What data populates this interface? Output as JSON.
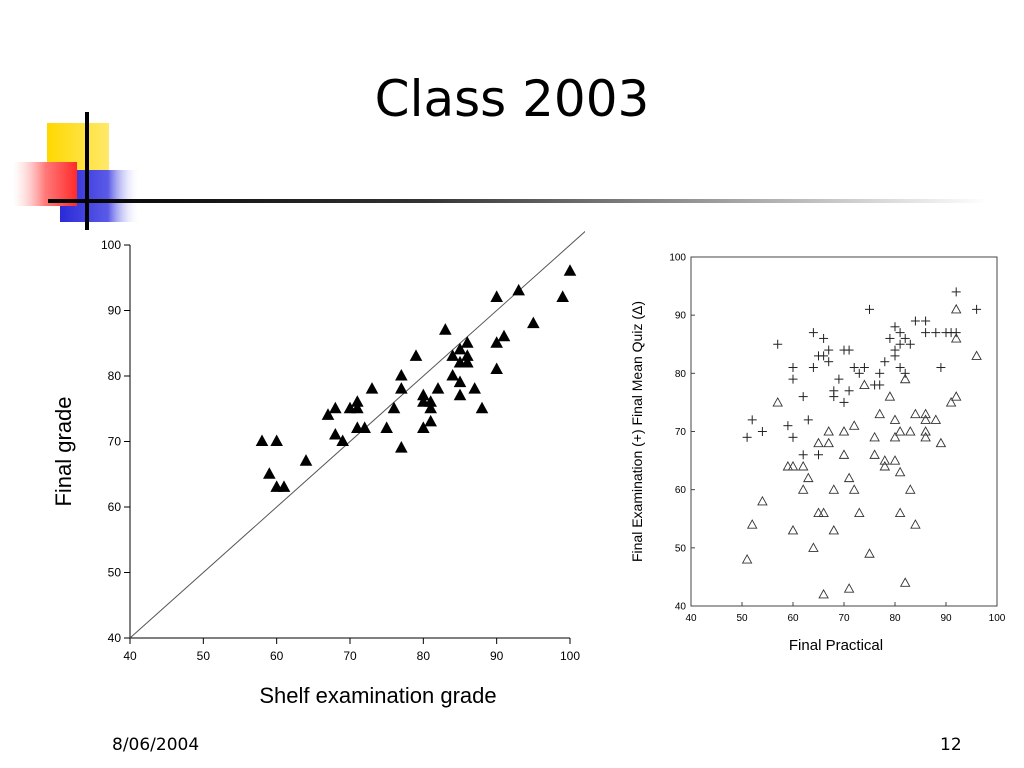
{
  "slide": {
    "title": "Class 2003",
    "footer_date": "8/06/2004",
    "page_number": "12"
  },
  "colors": {
    "deco_yellow": "#ffd800",
    "deco_red": "#ff3b3b",
    "deco_blue": "#2a2ad8",
    "rule": "#000000"
  },
  "chart_data": [
    {
      "type": "scatter",
      "title": "",
      "xlabel": "Shelf examination grade",
      "ylabel": "Final grade",
      "xlim": [
        40,
        100
      ],
      "ylim": [
        40,
        100
      ],
      "xticks": [
        40,
        50,
        60,
        70,
        80,
        90,
        100
      ],
      "yticks": [
        40,
        50,
        60,
        70,
        80,
        90,
        100
      ],
      "marker": "filled-triangle",
      "reference_line": {
        "from": [
          40,
          40
        ],
        "to": [
          103,
          103
        ]
      },
      "points": [
        [
          58,
          70
        ],
        [
          59,
          65
        ],
        [
          60,
          70
        ],
        [
          60,
          63
        ],
        [
          61,
          63
        ],
        [
          64,
          67
        ],
        [
          67,
          74
        ],
        [
          68,
          75
        ],
        [
          68,
          71
        ],
        [
          69,
          70
        ],
        [
          70,
          75
        ],
        [
          71,
          76
        ],
        [
          71,
          72
        ],
        [
          71,
          75
        ],
        [
          72,
          72
        ],
        [
          73,
          78
        ],
        [
          75,
          72
        ],
        [
          76,
          75
        ],
        [
          77,
          80
        ],
        [
          77,
          78
        ],
        [
          77,
          69
        ],
        [
          79,
          83
        ],
        [
          80,
          77
        ],
        [
          80,
          76
        ],
        [
          80,
          72
        ],
        [
          81,
          76
        ],
        [
          81,
          75
        ],
        [
          81,
          73
        ],
        [
          82,
          78
        ],
        [
          83,
          87
        ],
        [
          84,
          83
        ],
        [
          84,
          80
        ],
        [
          85,
          84
        ],
        [
          85,
          82
        ],
        [
          85,
          79
        ],
        [
          85,
          77
        ],
        [
          86,
          85
        ],
        [
          86,
          83
        ],
        [
          86,
          82
        ],
        [
          87,
          78
        ],
        [
          88,
          75
        ],
        [
          90,
          92
        ],
        [
          90,
          85
        ],
        [
          90,
          81
        ],
        [
          91,
          86
        ],
        [
          93,
          93
        ],
        [
          95,
          88
        ],
        [
          99,
          92
        ],
        [
          100,
          96
        ]
      ]
    },
    {
      "type": "scatter",
      "title": "",
      "xlabel": "Final Practical",
      "ylabel": "Final Examination  (+)       Final Mean Quiz  (Δ)",
      "xlim": [
        40,
        100
      ],
      "ylim": [
        40,
        100
      ],
      "xticks": [
        40,
        50,
        60,
        70,
        80,
        90,
        100
      ],
      "yticks": [
        40,
        50,
        60,
        70,
        80,
        90,
        100
      ],
      "series": [
        {
          "marker": "plus",
          "points": [
            [
              51,
              69
            ],
            [
              52,
              72
            ],
            [
              54,
              70
            ],
            [
              57,
              85
            ],
            [
              59,
              71
            ],
            [
              60,
              81
            ],
            [
              60,
              79
            ],
            [
              60,
              69
            ],
            [
              62,
              76
            ],
            [
              62,
              66
            ],
            [
              63,
              72
            ],
            [
              64,
              87
            ],
            [
              64,
              81
            ],
            [
              65,
              83
            ],
            [
              65,
              66
            ],
            [
              66,
              86
            ],
            [
              66,
              83
            ],
            [
              67,
              84
            ],
            [
              67,
              82
            ],
            [
              68,
              77
            ],
            [
              68,
              76
            ],
            [
              69,
              79
            ],
            [
              70,
              84
            ],
            [
              70,
              75
            ],
            [
              71,
              84
            ],
            [
              71,
              77
            ],
            [
              72,
              81
            ],
            [
              73,
              80
            ],
            [
              74,
              81
            ],
            [
              75,
              91
            ],
            [
              76,
              78
            ],
            [
              77,
              80
            ],
            [
              77,
              78
            ],
            [
              78,
              82
            ],
            [
              79,
              86
            ],
            [
              80,
              88
            ],
            [
              80,
              84
            ],
            [
              80,
              83
            ],
            [
              81,
              87
            ],
            [
              81,
              85
            ],
            [
              81,
              81
            ],
            [
              82,
              86
            ],
            [
              82,
              80
            ],
            [
              83,
              85
            ],
            [
              84,
              89
            ],
            [
              86,
              89
            ],
            [
              86,
              87
            ],
            [
              88,
              87
            ],
            [
              89,
              81
            ],
            [
              90,
              87
            ],
            [
              91,
              87
            ],
            [
              92,
              94
            ],
            [
              92,
              87
            ],
            [
              96,
              91
            ]
          ]
        },
        {
          "marker": "open-triangle",
          "points": [
            [
              51,
              48
            ],
            [
              52,
              54
            ],
            [
              54,
              58
            ],
            [
              57,
              75
            ],
            [
              59,
              64
            ],
            [
              60,
              64
            ],
            [
              60,
              53
            ],
            [
              62,
              60
            ],
            [
              62,
              64
            ],
            [
              63,
              62
            ],
            [
              64,
              50
            ],
            [
              65,
              68
            ],
            [
              65,
              56
            ],
            [
              66,
              42
            ],
            [
              66,
              56
            ],
            [
              67,
              70
            ],
            [
              67,
              68
            ],
            [
              68,
              53
            ],
            [
              68,
              60
            ],
            [
              70,
              70
            ],
            [
              70,
              66
            ],
            [
              71,
              43
            ],
            [
              71,
              62
            ],
            [
              72,
              60
            ],
            [
              72,
              71
            ],
            [
              73,
              56
            ],
            [
              74,
              78
            ],
            [
              75,
              49
            ],
            [
              76,
              69
            ],
            [
              76,
              66
            ],
            [
              77,
              73
            ],
            [
              78,
              65
            ],
            [
              78,
              64
            ],
            [
              79,
              76
            ],
            [
              80,
              72
            ],
            [
              80,
              65
            ],
            [
              80,
              69
            ],
            [
              81,
              70
            ],
            [
              81,
              63
            ],
            [
              81,
              56
            ],
            [
              82,
              44
            ],
            [
              82,
              79
            ],
            [
              83,
              70
            ],
            [
              83,
              60
            ],
            [
              84,
              73
            ],
            [
              84,
              54
            ],
            [
              86,
              73
            ],
            [
              86,
              69
            ],
            [
              86,
              70
            ],
            [
              86,
              72
            ],
            [
              88,
              72
            ],
            [
              89,
              68
            ],
            [
              91,
              75
            ],
            [
              92,
              76
            ],
            [
              92,
              91
            ],
            [
              92,
              86
            ],
            [
              96,
              83
            ]
          ]
        }
      ]
    }
  ]
}
